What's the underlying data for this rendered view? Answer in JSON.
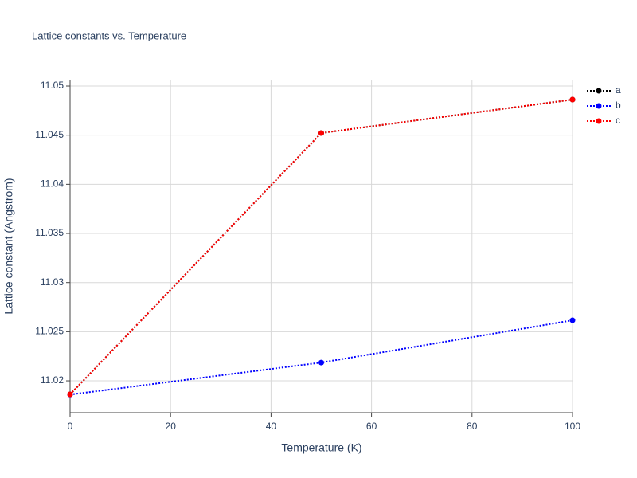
{
  "chart_data": {
    "type": "line",
    "title": "Lattice constants vs. Temperature",
    "x_label": "Temperature (K)",
    "y_label": "Lattice constant (Angstrom)",
    "x": [
      0,
      50,
      100
    ],
    "series": [
      {
        "name": "a",
        "color": "#000000",
        "values": [
          11.01862,
          11.04522,
          11.04862
        ]
      },
      {
        "name": "b",
        "color": "#0000ff",
        "values": [
          11.0186,
          11.02186,
          11.02616
        ]
      },
      {
        "name": "c",
        "color": "#ff0000",
        "values": [
          11.01862,
          11.04522,
          11.04862
        ]
      }
    ],
    "xlim": [
      0,
      100
    ],
    "xticks": [
      0,
      20,
      40,
      60,
      80,
      100
    ],
    "ylim": [
      11.01676,
      11.05065
    ],
    "yticks": [
      11.02,
      11.025,
      11.03,
      11.035,
      11.04,
      11.045,
      11.05
    ],
    "grid": true,
    "legend": "top-right"
  }
}
